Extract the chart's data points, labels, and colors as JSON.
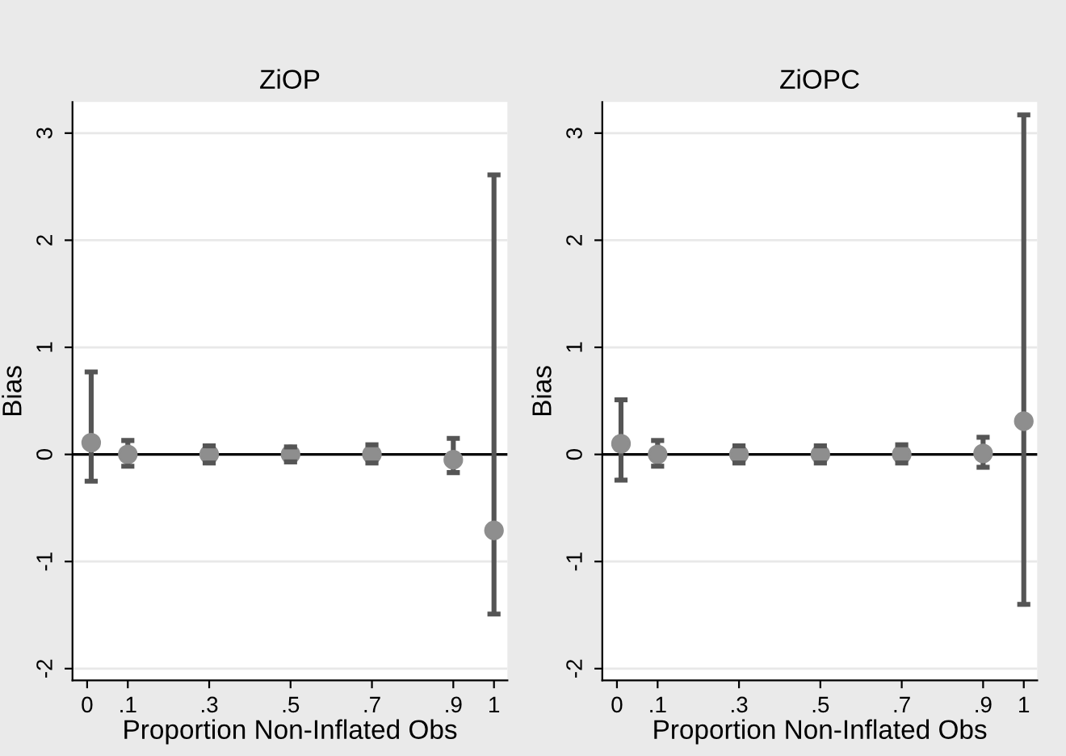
{
  "chart_data": [
    {
      "type": "scatter",
      "title": "ZiOP",
      "xlabel": "Proportion Non-Inflated Obs",
      "ylabel": "Bias",
      "x": [
        0.01,
        0.1,
        0.3,
        0.5,
        0.7,
        0.9,
        1
      ],
      "series": [
        {
          "color": "#8e8e8e",
          "values": [
            0.11,
            0,
            0,
            0,
            0,
            -0.05,
            -0.71
          ],
          "errors": [
            [
              -0.25,
              0.77
            ],
            [
              -0.11,
              0.13
            ],
            [
              -0.08,
              0.08
            ],
            [
              -0.07,
              0.07
            ],
            [
              -0.08,
              0.09
            ],
            [
              -0.17,
              0.15
            ],
            [
              -1.49,
              2.61
            ]
          ]
        }
      ],
      "marker": "circle",
      "xlim": [
        -0.036,
        1.033
      ],
      "ylim": [
        -2.11,
        3.29
      ],
      "xticks": [
        0,
        {
          "value": 0.1,
          "label": ".1"
        },
        {
          "value": 0.3,
          "label": ".3"
        },
        {
          "value": 0.5,
          "label": ".5"
        },
        {
          "value": 0.7,
          "label": ".7"
        },
        {
          "value": 0.9,
          "label": ".9"
        },
        1
      ],
      "yticks": [
        -2,
        -1,
        0,
        1,
        2,
        3
      ],
      "grid": "y",
      "ref_lines": [
        {
          "axis": "y",
          "value": 0,
          "color": "#000000"
        }
      ]
    },
    {
      "type": "scatter",
      "title": "ZiOPC",
      "xlabel": "Proportion Non-Inflated Obs",
      "ylabel": "Bias",
      "x": [
        0.01,
        0.1,
        0.3,
        0.5,
        0.7,
        0.9,
        1
      ],
      "series": [
        {
          "color": "#8e8e8e",
          "values": [
            0.1,
            0,
            0,
            0,
            0,
            0.01,
            0.31
          ],
          "errors": [
            [
              -0.24,
              0.51
            ],
            [
              -0.11,
              0.13
            ],
            [
              -0.08,
              0.08
            ],
            [
              -0.08,
              0.08
            ],
            [
              -0.08,
              0.09
            ],
            [
              -0.12,
              0.16
            ],
            [
              -1.4,
              3.17
            ]
          ]
        }
      ],
      "marker": "circle",
      "xlim": [
        -0.036,
        1.033
      ],
      "ylim": [
        -2.11,
        3.29
      ],
      "xticks": [
        0,
        {
          "value": 0.1,
          "label": ".1"
        },
        {
          "value": 0.3,
          "label": ".3"
        },
        {
          "value": 0.5,
          "label": ".5"
        },
        {
          "value": 0.7,
          "label": ".7"
        },
        {
          "value": 0.9,
          "label": ".9"
        },
        1
      ],
      "yticks": [
        -2,
        -1,
        0,
        1,
        2,
        3
      ],
      "grid": "y",
      "ref_lines": [
        {
          "axis": "y",
          "value": 0,
          "color": "#000000"
        }
      ]
    }
  ]
}
